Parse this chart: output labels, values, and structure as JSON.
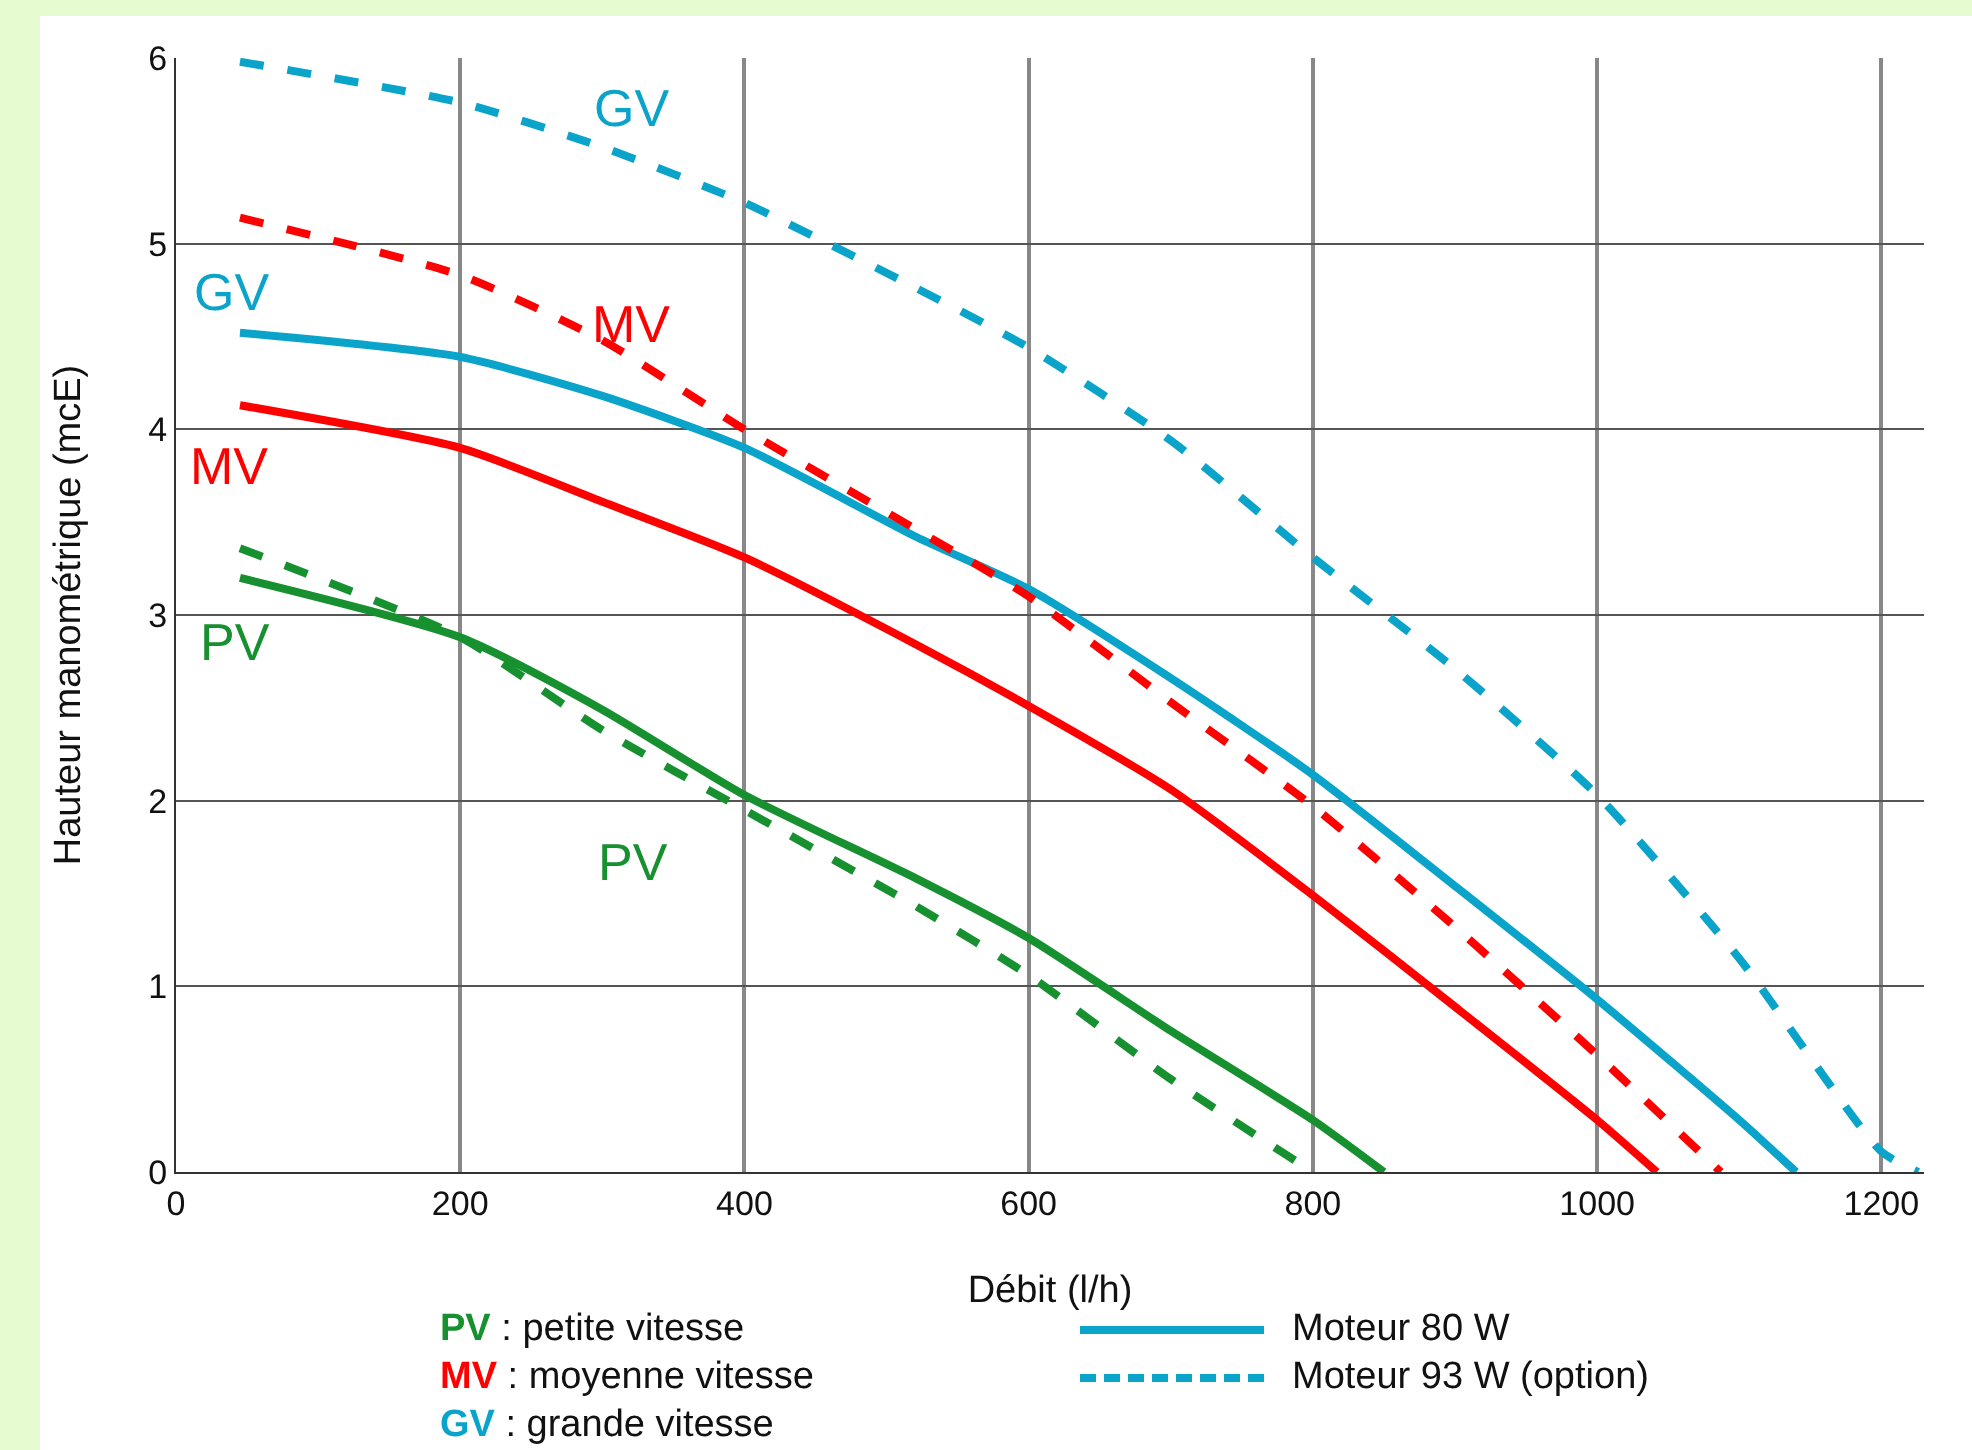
{
  "chart_data": {
    "type": "line",
    "xlabel": "Débit (l/h)",
    "ylabel": "Hauteur manométrique (mcE)",
    "xlim": [
      0,
      1230
    ],
    "xticks": [
      0,
      200,
      400,
      600,
      800,
      1000,
      1200
    ],
    "ylim": [
      0,
      6
    ],
    "yticks": [
      0,
      1,
      2,
      3,
      4,
      5,
      6
    ],
    "grid": true,
    "marker": "none",
    "series": [
      {
        "name": "PV",
        "color": "#17902f",
        "line_style": "solid",
        "x": [
          45,
          200,
          300,
          400,
          521,
          600,
          700,
          800,
          850
        ],
        "values": [
          3.2,
          2.88,
          2.49,
          2.03,
          1.58,
          1.26,
          0.76,
          0.28,
          0
        ]
      },
      {
        "name": "MV",
        "color": "#ff0000",
        "line_style": "solid",
        "x": [
          45,
          200,
          300,
          400,
          521,
          600,
          700,
          800,
          900,
          1000,
          1042
        ],
        "values": [
          4.13,
          3.9,
          3.61,
          3.31,
          2.84,
          2.51,
          2.06,
          1.49,
          0.89,
          0.28,
          0
        ]
      },
      {
        "name": "GV",
        "color": "#0aa3c9",
        "line_style": "solid",
        "x": [
          45,
          200,
          300,
          400,
          521,
          600,
          700,
          800,
          900,
          1000,
          1100,
          1140
        ],
        "values": [
          4.52,
          4.39,
          4.18,
          3.9,
          3.42,
          3.14,
          2.66,
          2.14,
          1.54,
          0.93,
          0.28,
          0
        ]
      },
      {
        "name": "PV",
        "color": "#17902f",
        "line_style": "dashed",
        "x": [
          45,
          200,
          300,
          400,
          521,
          600,
          700,
          800
        ],
        "values": [
          3.36,
          2.88,
          2.38,
          1.95,
          1.43,
          1.06,
          0.5,
          0
        ]
      },
      {
        "name": "MV",
        "color": "#ff0000",
        "line_style": "dashed",
        "x": [
          45,
          200,
          300,
          400,
          521,
          600,
          700,
          800,
          900,
          1000,
          1087
        ],
        "values": [
          5.14,
          4.83,
          4.48,
          4.0,
          3.46,
          3.1,
          2.53,
          1.97,
          1.32,
          0.63,
          0
        ]
      },
      {
        "name": "GV",
        "color": "#0aa3c9",
        "line_style": "dashed",
        "x": [
          45,
          200,
          300,
          400,
          521,
          600,
          700,
          800,
          900,
          1000,
          1100,
          1200,
          1226
        ],
        "values": [
          5.98,
          5.76,
          5.52,
          5.22,
          4.76,
          4.44,
          3.94,
          3.31,
          2.71,
          2.03,
          1.15,
          0.11,
          0
        ]
      }
    ],
    "annotations": [
      "PV : petite vitesse",
      "MV : moyenne vitesse",
      "GV : grande vitesse",
      "Moteur 80 W",
      "Moteur 93 W (option)"
    ]
  }
}
